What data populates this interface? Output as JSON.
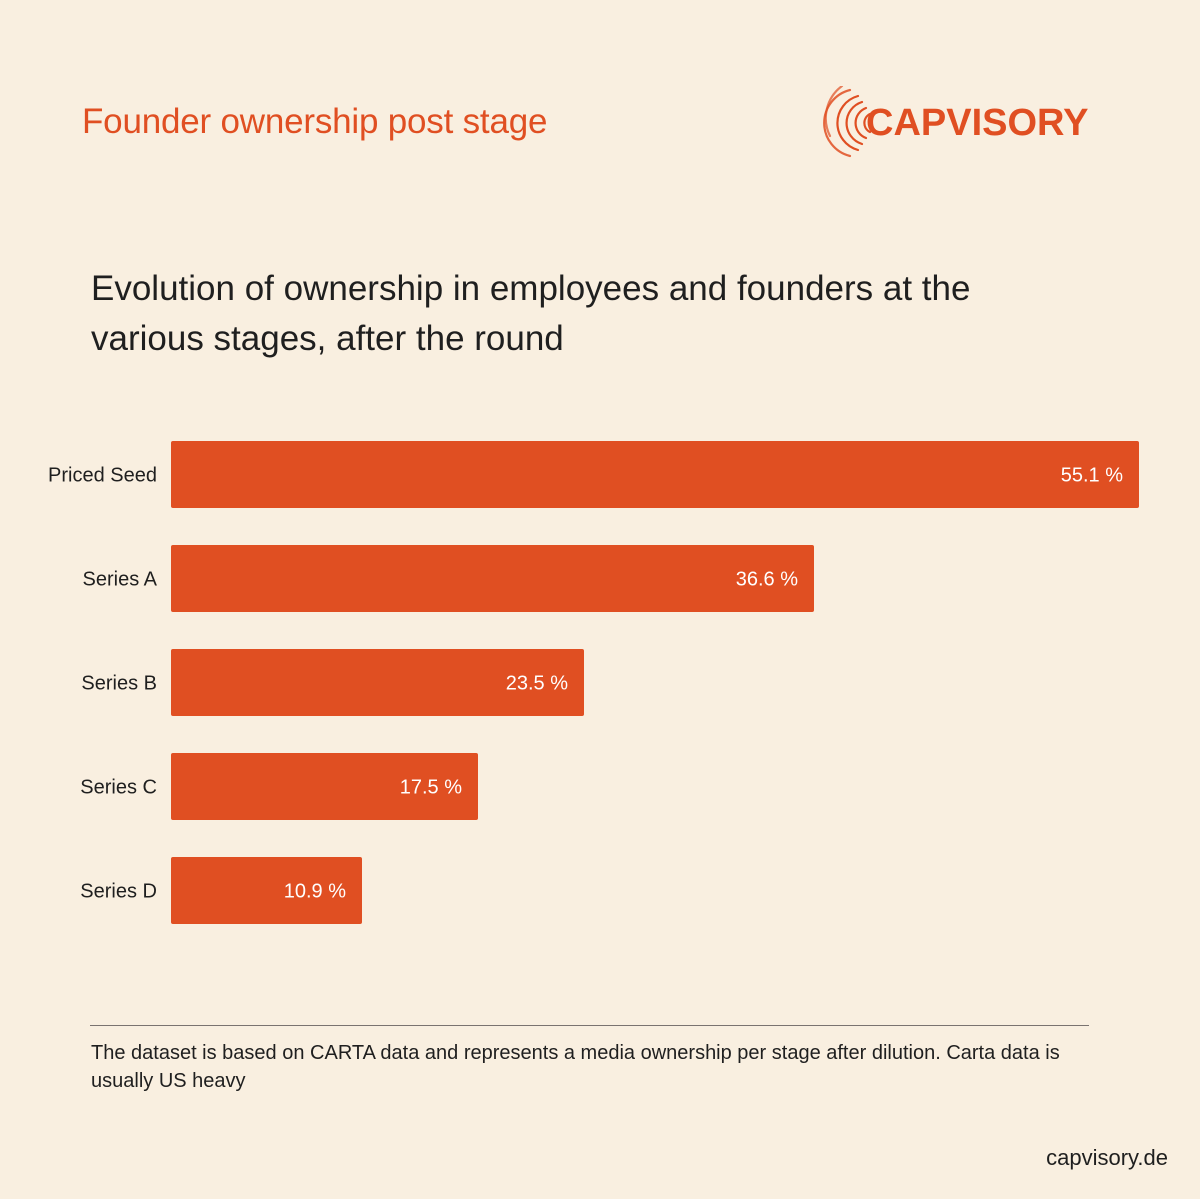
{
  "header": {
    "title": "Founder ownership post stage",
    "logo_text": "CAPVISORY"
  },
  "subtitle": "Evolution of ownership in employees and founders at the various stages, after the round",
  "chart_data": {
    "type": "bar",
    "orientation": "horizontal",
    "categories": [
      "Priced Seed",
      "Series A",
      "Series B",
      "Series C",
      "Series D"
    ],
    "values": [
      55.1,
      36.6,
      23.5,
      17.5,
      10.9
    ],
    "value_labels": [
      "55.1 %",
      "36.6 %",
      "23.5 %",
      "17.5 %",
      "10.9 %"
    ],
    "unit": "%",
    "xlim": [
      0,
      55.1
    ],
    "bar_color": "#e04f22",
    "label_color": "#ffffff",
    "grid": false
  },
  "footnote": "The dataset is based on CARTA data and represents a media ownership per stage after dilution. Carta data is usually US heavy",
  "footer": {
    "site": "capvisory.de"
  },
  "colors": {
    "background": "#f9efe0",
    "accent": "#e04f22",
    "text": "#1f1f1f"
  }
}
